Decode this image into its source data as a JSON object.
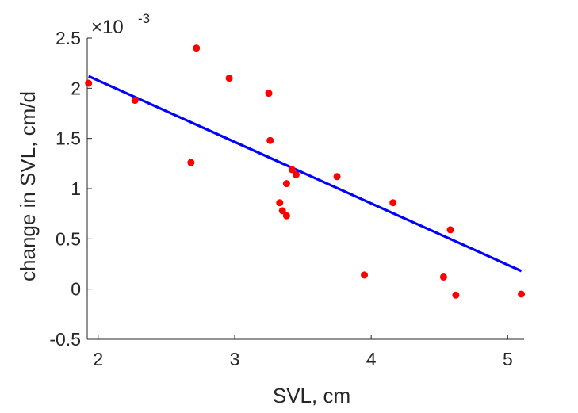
{
  "chart_data": {
    "type": "scatter",
    "xlabel": "SVL, cm",
    "ylabel": "change in SVL, cm/d",
    "y_exponent": {
      "base": "×10",
      "power": "-3"
    },
    "xlim": [
      1.92,
      5.12
    ],
    "ylim": [
      -0.5,
      2.5
    ],
    "x_ticks": [
      2,
      3,
      4,
      5
    ],
    "x_tick_labels": [
      "2",
      "3",
      "4",
      "5"
    ],
    "y_ticks": [
      -0.5,
      0,
      0.5,
      1,
      1.5,
      2,
      2.5
    ],
    "y_tick_labels": [
      "-0.5",
      "0",
      "0.5",
      "1",
      "1.5",
      "2",
      "2.5"
    ],
    "grid": false,
    "series": [
      {
        "kind": "scatter",
        "color": "#ff0000",
        "x": [
          1.93,
          2.27,
          2.68,
          2.72,
          2.96,
          3.25,
          3.26,
          3.33,
          3.35,
          3.38,
          3.38,
          3.42,
          3.45,
          3.75,
          3.95,
          4.16,
          4.53,
          4.58,
          4.62,
          5.1
        ],
        "y": [
          2.05,
          1.88,
          1.26,
          2.4,
          2.1,
          1.95,
          1.48,
          0.86,
          0.78,
          1.05,
          0.73,
          1.19,
          1.14,
          1.12,
          0.14,
          0.86,
          0.12,
          0.59,
          -0.06,
          -0.05
        ]
      },
      {
        "kind": "line",
        "color": "#0000ff",
        "x": [
          1.93,
          5.1
        ],
        "y": [
          2.12,
          0.18
        ]
      }
    ]
  }
}
